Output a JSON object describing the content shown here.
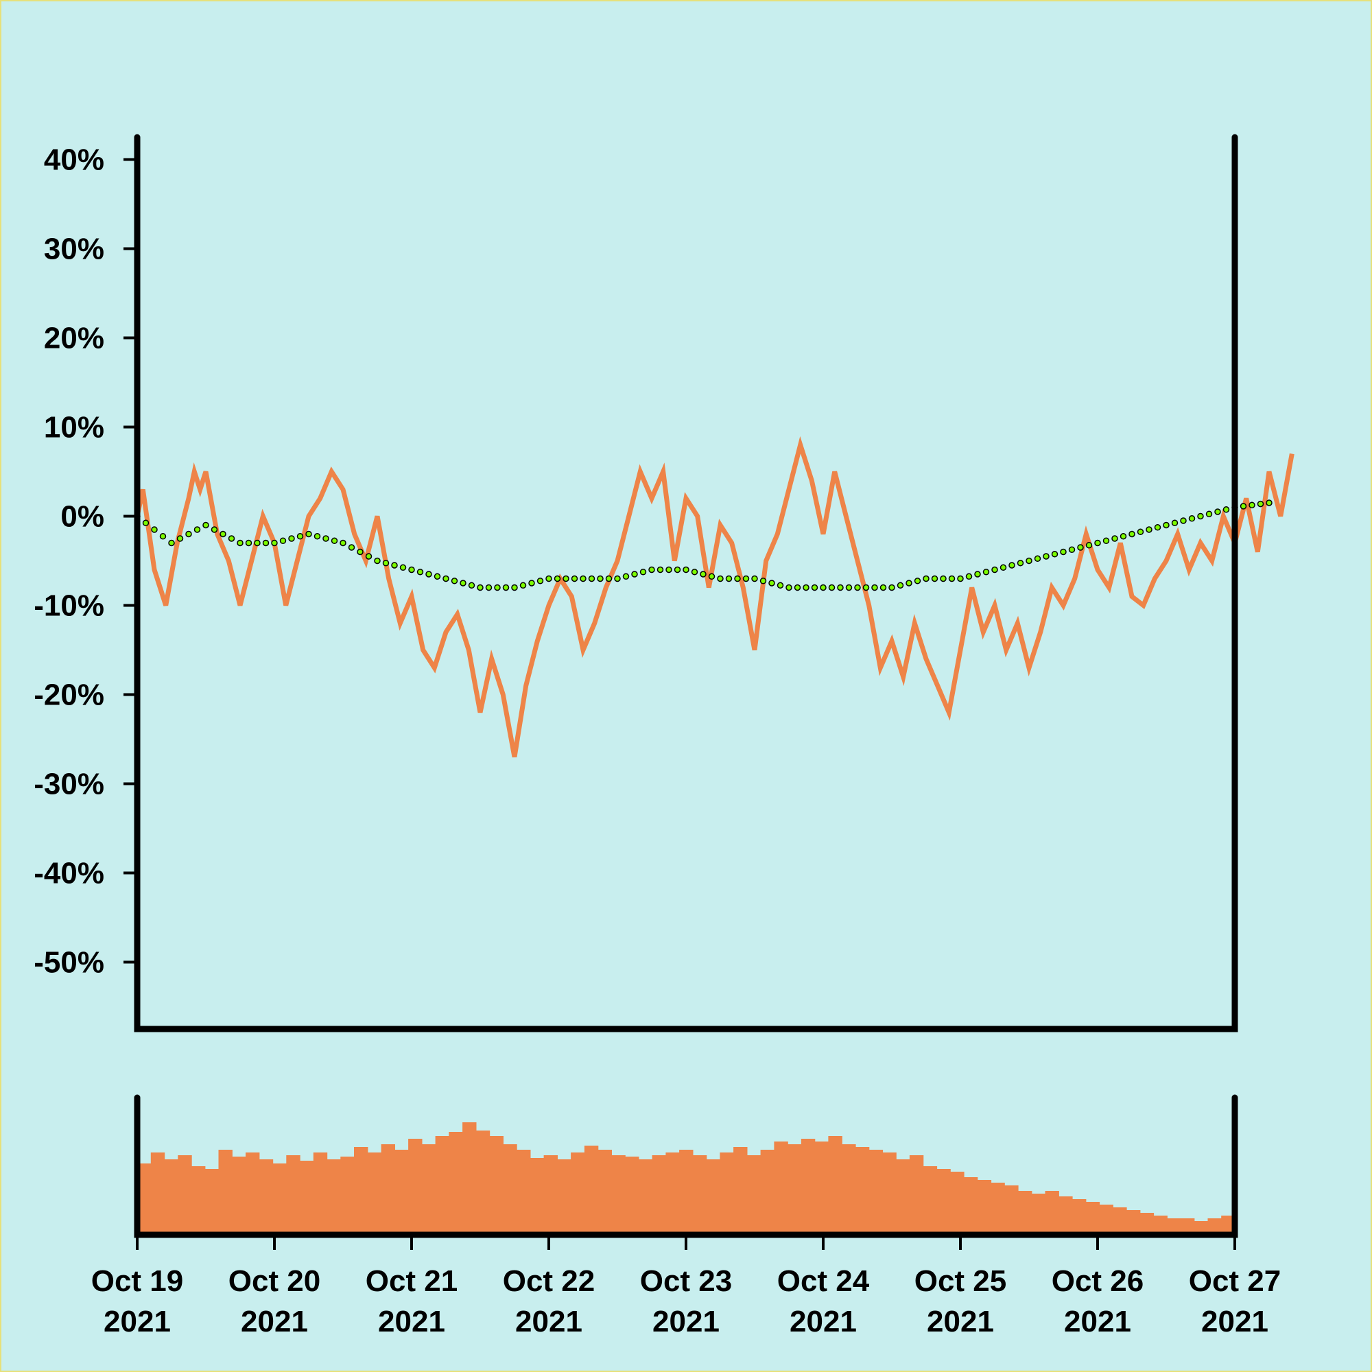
{
  "colors": {
    "background": "#c8eeee",
    "frame": "#e6e07a",
    "price": "#ee8448",
    "volume": "#ee8448",
    "trend_marker": "#7cfc00",
    "axis": "#000000"
  },
  "chart_data": {
    "type": "line",
    "title": "",
    "xlabel": "",
    "ylabel": "",
    "x_ticks": [
      {
        "line1": "Oct 19",
        "line2": "2021",
        "date": "2021-10-19"
      },
      {
        "line1": "Oct 20",
        "line2": "2021",
        "date": "2021-10-20"
      },
      {
        "line1": "Oct 21",
        "line2": "2021",
        "date": "2021-10-21"
      },
      {
        "line1": "Oct 22",
        "line2": "2021",
        "date": "2021-10-22"
      },
      {
        "line1": "Oct 23",
        "line2": "2021",
        "date": "2021-10-23"
      },
      {
        "line1": "Oct 24",
        "line2": "2021",
        "date": "2021-10-24"
      },
      {
        "line1": "Oct 25",
        "line2": "2021",
        "date": "2021-10-25"
      },
      {
        "line1": "Oct 26",
        "line2": "2021",
        "date": "2021-10-26"
      },
      {
        "line1": "Oct 27",
        "line2": "2021",
        "date": "2021-10-27"
      }
    ],
    "xlim": [
      "2021-10-19",
      "2021-10-27"
    ],
    "y_ticks": [
      40,
      30,
      20,
      10,
      0,
      -10,
      -20,
      -30,
      -40,
      -50
    ],
    "y_tick_labels": [
      "40%",
      "30%",
      "20%",
      "10%",
      "0%",
      "-10%",
      "-20%",
      "-30%",
      "-40%",
      "-50%"
    ],
    "ylim": [
      -57.5,
      42.5
    ],
    "grid": false,
    "legend": "none",
    "series": [
      {
        "type": "line",
        "points": [
          [
            "2021-10-19 00:00",
            0
          ],
          [
            "2021-10-19 01:00",
            3
          ],
          [
            "2021-10-19 03:00",
            -6
          ],
          [
            "2021-10-19 05:00",
            -10
          ],
          [
            "2021-10-19 07:00",
            -3
          ],
          [
            "2021-10-19 09:00",
            2
          ],
          [
            "2021-10-19 10:00",
            5
          ],
          [
            "2021-10-19 11:00",
            3
          ],
          [
            "2021-10-19 12:00",
            5
          ],
          [
            "2021-10-19 14:00",
            -2
          ],
          [
            "2021-10-19 16:00",
            -5
          ],
          [
            "2021-10-19 18:00",
            -10
          ],
          [
            "2021-10-19 20:00",
            -5
          ],
          [
            "2021-10-19 22:00",
            0
          ],
          [
            "2021-10-20 00:00",
            -3
          ],
          [
            "2021-10-20 02:00",
            -10
          ],
          [
            "2021-10-20 04:00",
            -5
          ],
          [
            "2021-10-20 06:00",
            0
          ],
          [
            "2021-10-20 08:00",
            2
          ],
          [
            "2021-10-20 10:00",
            5
          ],
          [
            "2021-10-20 12:00",
            3
          ],
          [
            "2021-10-20 14:00",
            -2
          ],
          [
            "2021-10-20 16:00",
            -5
          ],
          [
            "2021-10-20 18:00",
            0
          ],
          [
            "2021-10-20 20:00",
            -7
          ],
          [
            "2021-10-20 22:00",
            -12
          ],
          [
            "2021-10-21 00:00",
            -9
          ],
          [
            "2021-10-21 02:00",
            -15
          ],
          [
            "2021-10-21 04:00",
            -17
          ],
          [
            "2021-10-21 06:00",
            -13
          ],
          [
            "2021-10-21 08:00",
            -11
          ],
          [
            "2021-10-21 10:00",
            -15
          ],
          [
            "2021-10-21 12:00",
            -22
          ],
          [
            "2021-10-21 14:00",
            -16
          ],
          [
            "2021-10-21 16:00",
            -20
          ],
          [
            "2021-10-21 18:00",
            -27
          ],
          [
            "2021-10-21 20:00",
            -19
          ],
          [
            "2021-10-21 22:00",
            -14
          ],
          [
            "2021-10-22 00:00",
            -10
          ],
          [
            "2021-10-22 02:00",
            -7
          ],
          [
            "2021-10-22 04:00",
            -9
          ],
          [
            "2021-10-22 06:00",
            -15
          ],
          [
            "2021-10-22 08:00",
            -12
          ],
          [
            "2021-10-22 10:00",
            -8
          ],
          [
            "2021-10-22 12:00",
            -5
          ],
          [
            "2021-10-22 14:00",
            0
          ],
          [
            "2021-10-22 16:00",
            5
          ],
          [
            "2021-10-22 18:00",
            2
          ],
          [
            "2021-10-22 20:00",
            5
          ],
          [
            "2021-10-22 22:00",
            -5
          ],
          [
            "2021-10-23 00:00",
            2
          ],
          [
            "2021-10-23 02:00",
            0
          ],
          [
            "2021-10-23 04:00",
            -8
          ],
          [
            "2021-10-23 06:00",
            -1
          ],
          [
            "2021-10-23 08:00",
            -3
          ],
          [
            "2021-10-23 10:00",
            -8
          ],
          [
            "2021-10-23 12:00",
            -15
          ],
          [
            "2021-10-23 14:00",
            -5
          ],
          [
            "2021-10-23 16:00",
            -2
          ],
          [
            "2021-10-23 18:00",
            3
          ],
          [
            "2021-10-23 20:00",
            8
          ],
          [
            "2021-10-23 22:00",
            4
          ],
          [
            "2021-10-24 00:00",
            -2
          ],
          [
            "2021-10-24 02:00",
            5
          ],
          [
            "2021-10-24 04:00",
            0
          ],
          [
            "2021-10-24 06:00",
            -5
          ],
          [
            "2021-10-24 08:00",
            -10
          ],
          [
            "2021-10-24 10:00",
            -17
          ],
          [
            "2021-10-24 12:00",
            -14
          ],
          [
            "2021-10-24 14:00",
            -18
          ],
          [
            "2021-10-24 16:00",
            -12
          ],
          [
            "2021-10-24 18:00",
            -16
          ],
          [
            "2021-10-24 20:00",
            -19
          ],
          [
            "2021-10-24 22:00",
            -22
          ],
          [
            "2021-10-25 00:00",
            -15
          ],
          [
            "2021-10-25 02:00",
            -8
          ],
          [
            "2021-10-25 04:00",
            -13
          ],
          [
            "2021-10-25 06:00",
            -10
          ],
          [
            "2021-10-25 08:00",
            -15
          ],
          [
            "2021-10-25 10:00",
            -12
          ],
          [
            "2021-10-25 12:00",
            -17
          ],
          [
            "2021-10-25 14:00",
            -13
          ],
          [
            "2021-10-25 16:00",
            -8
          ],
          [
            "2021-10-25 18:00",
            -10
          ],
          [
            "2021-10-25 20:00",
            -7
          ],
          [
            "2021-10-25 22:00",
            -2
          ],
          [
            "2021-10-26 00:00",
            -6
          ],
          [
            "2021-10-26 02:00",
            -8
          ],
          [
            "2021-10-26 04:00",
            -3
          ],
          [
            "2021-10-26 06:00",
            -9
          ],
          [
            "2021-10-26 08:00",
            -10
          ],
          [
            "2021-10-26 10:00",
            -7
          ],
          [
            "2021-10-26 12:00",
            -5
          ],
          [
            "2021-10-26 14:00",
            -2
          ],
          [
            "2021-10-26 16:00",
            -6
          ],
          [
            "2021-10-26 18:00",
            -3
          ],
          [
            "2021-10-26 20:00",
            -5
          ],
          [
            "2021-10-26 22:00",
            0
          ],
          [
            "2021-10-27 00:00",
            -3
          ],
          [
            "2021-10-27 02:00",
            2
          ],
          [
            "2021-10-27 04:00",
            -4
          ],
          [
            "2021-10-27 06:00",
            5
          ],
          [
            "2021-10-27 08:00",
            0
          ],
          [
            "2021-10-27 10:00",
            7
          ]
        ]
      },
      {
        "type": "dotted-trend",
        "points": [
          [
            "2021-10-19 00:00",
            0
          ],
          [
            "2021-10-19 06:00",
            -3
          ],
          [
            "2021-10-19 12:00",
            -1
          ],
          [
            "2021-10-19 18:00",
            -3
          ],
          [
            "2021-10-20 00:00",
            -3
          ],
          [
            "2021-10-20 06:00",
            -2
          ],
          [
            "2021-10-20 12:00",
            -3
          ],
          [
            "2021-10-20 18:00",
            -5
          ],
          [
            "2021-10-21 00:00",
            -6
          ],
          [
            "2021-10-21 06:00",
            -7
          ],
          [
            "2021-10-21 12:00",
            -8
          ],
          [
            "2021-10-21 18:00",
            -8
          ],
          [
            "2021-10-22 00:00",
            -7
          ],
          [
            "2021-10-22 06:00",
            -7
          ],
          [
            "2021-10-22 12:00",
            -7
          ],
          [
            "2021-10-22 18:00",
            -6
          ],
          [
            "2021-10-23 00:00",
            -6
          ],
          [
            "2021-10-23 06:00",
            -7
          ],
          [
            "2021-10-23 12:00",
            -7
          ],
          [
            "2021-10-23 18:00",
            -8
          ],
          [
            "2021-10-24 00:00",
            -8
          ],
          [
            "2021-10-24 06:00",
            -8
          ],
          [
            "2021-10-24 12:00",
            -8
          ],
          [
            "2021-10-24 18:00",
            -7
          ],
          [
            "2021-10-25 00:00",
            -7
          ],
          [
            "2021-10-25 06:00",
            -6
          ],
          [
            "2021-10-25 12:00",
            -5
          ],
          [
            "2021-10-25 18:00",
            -4
          ],
          [
            "2021-10-26 00:00",
            -3
          ],
          [
            "2021-10-26 06:00",
            -2
          ],
          [
            "2021-10-26 12:00",
            -1
          ],
          [
            "2021-10-26 18:00",
            0
          ],
          [
            "2021-10-27 00:00",
            1
          ],
          [
            "2021-10-27 06:00",
            1.5
          ]
        ]
      }
    ],
    "volume": {
      "type": "bar",
      "relative_heights": [
        0.52,
        0.6,
        0.55,
        0.58,
        0.5,
        0.48,
        0.62,
        0.57,
        0.6,
        0.55,
        0.52,
        0.58,
        0.54,
        0.6,
        0.55,
        0.57,
        0.64,
        0.6,
        0.66,
        0.62,
        0.7,
        0.66,
        0.72,
        0.75,
        0.82,
        0.76,
        0.72,
        0.66,
        0.62,
        0.56,
        0.58,
        0.55,
        0.6,
        0.65,
        0.62,
        0.58,
        0.57,
        0.55,
        0.58,
        0.6,
        0.62,
        0.58,
        0.55,
        0.6,
        0.64,
        0.58,
        0.62,
        0.68,
        0.66,
        0.7,
        0.68,
        0.72,
        0.66,
        0.64,
        0.62,
        0.6,
        0.55,
        0.58,
        0.5,
        0.48,
        0.46,
        0.42,
        0.4,
        0.38,
        0.36,
        0.32,
        0.3,
        0.32,
        0.28,
        0.26,
        0.24,
        0.22,
        0.2,
        0.18,
        0.16,
        0.14,
        0.12,
        0.12,
        0.1,
        0.12,
        0.14
      ]
    }
  }
}
